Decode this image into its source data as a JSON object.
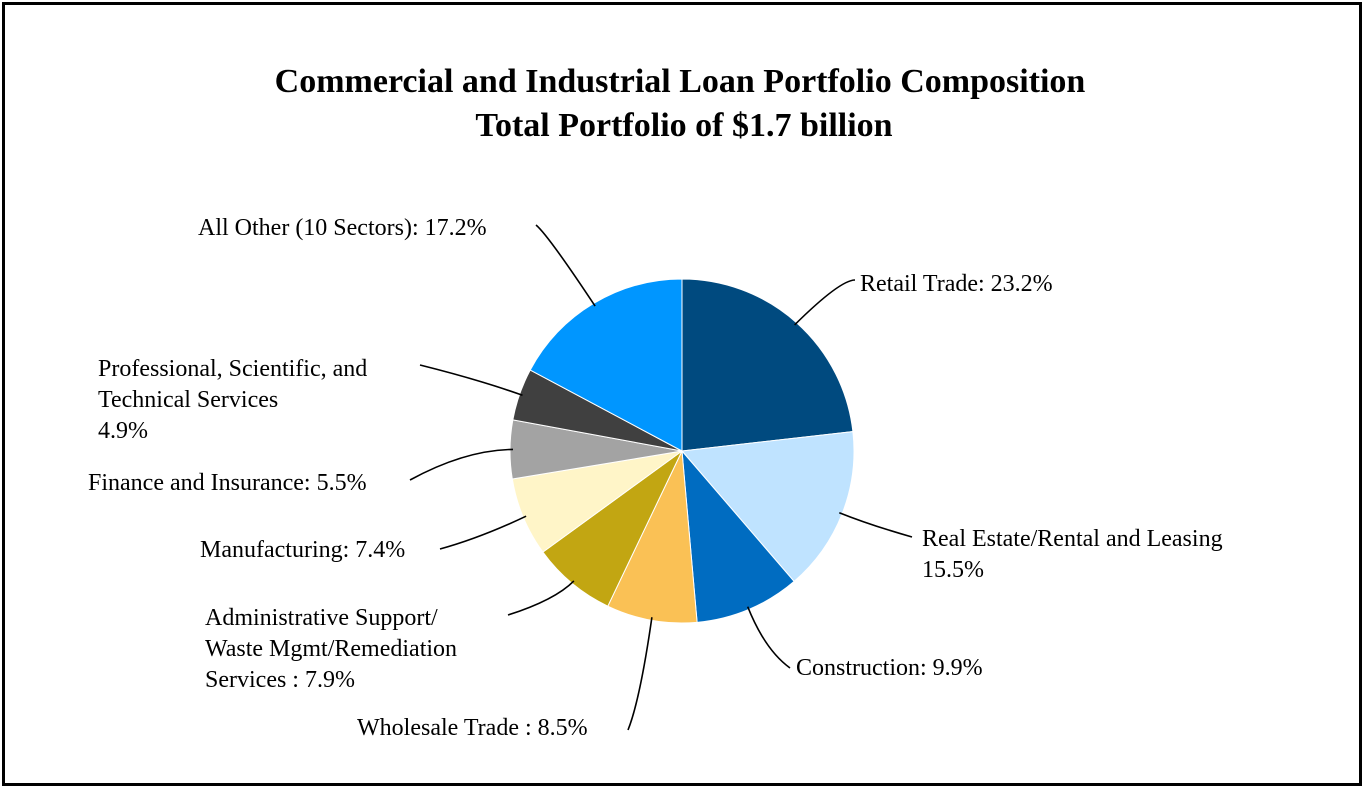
{
  "chart_data": {
    "type": "pie",
    "title": "Commercial and Industrial Loan Portfolio Composition",
    "subtitle": "Total Portfolio of $1.7 billion",
    "slices": [
      {
        "label": [
          "Retail Trade: 23.2%"
        ],
        "value": 23.2,
        "color": "#004A7F"
      },
      {
        "label": [
          "Real Estate/Rental and Leasing",
          "15.5%"
        ],
        "value": 15.5,
        "color": "#BFE3FF"
      },
      {
        "label": [
          "Construction: 9.9%"
        ],
        "value": 9.9,
        "color": "#006CC1"
      },
      {
        "label": [
          "Wholesale Trade : 8.5%"
        ],
        "value": 8.5,
        "color": "#FAC155"
      },
      {
        "label": [
          "Administrative Support/",
          "Waste Mgmt/Remediation",
          "Services : 7.9%"
        ],
        "value": 7.9,
        "color": "#C2A612"
      },
      {
        "label": [
          "Manufacturing: 7.4%"
        ],
        "value": 7.4,
        "color": "#FFF5C8"
      },
      {
        "label": [
          "Finance and Insurance: 5.5%"
        ],
        "value": 5.5,
        "color": "#A3A3A3"
      },
      {
        "label": [
          "Professional, Scientific, and",
          "Technical Services",
          "4.9%"
        ],
        "value": 4.9,
        "color": "#404040"
      },
      {
        "label": [
          "All Other (10 Sectors): 17.2%"
        ],
        "value": 17.2,
        "color": "#0096FF"
      }
    ]
  }
}
